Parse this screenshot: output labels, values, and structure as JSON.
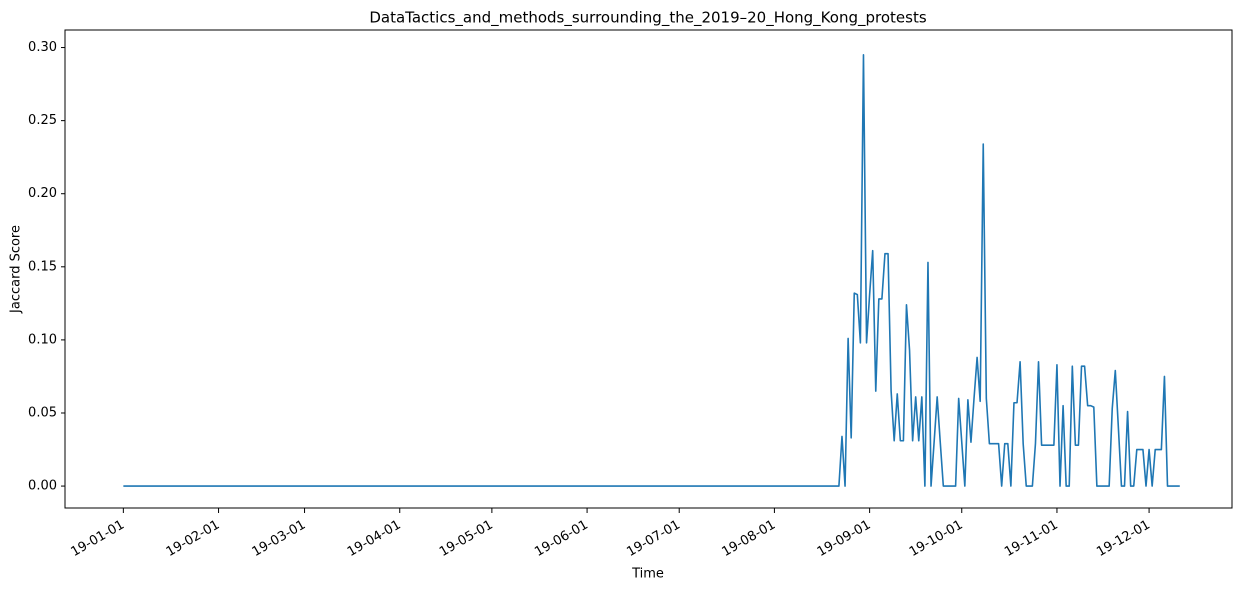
{
  "chart_data": {
    "type": "line",
    "title": "DataTactics_and_methods_surrounding_the_2019–20_Hong_Kong_protests",
    "x_label": "Time",
    "y_label": "Jaccard Score",
    "x": [
      "2019-01-01",
      "2019-08-22",
      "2019-08-23",
      "2019-08-24",
      "2019-08-25",
      "2019-08-26",
      "2019-08-27",
      "2019-08-28",
      "2019-08-29",
      "2019-08-30",
      "2019-08-31",
      "2019-09-01",
      "2019-09-02",
      "2019-09-03",
      "2019-09-04",
      "2019-09-05",
      "2019-09-06",
      "2019-09-07",
      "2019-09-08",
      "2019-09-09",
      "2019-09-10",
      "2019-09-11",
      "2019-09-12",
      "2019-09-13",
      "2019-09-14",
      "2019-09-15",
      "2019-09-16",
      "2019-09-17",
      "2019-09-18",
      "2019-09-19",
      "2019-09-20",
      "2019-09-21",
      "2019-09-22",
      "2019-09-23",
      "2019-09-24",
      "2019-09-25",
      "2019-09-26",
      "2019-09-27",
      "2019-09-28",
      "2019-09-29",
      "2019-09-30",
      "2019-10-01",
      "2019-10-02",
      "2019-10-03",
      "2019-10-04",
      "2019-10-05",
      "2019-10-06",
      "2019-10-07",
      "2019-10-08",
      "2019-10-09",
      "2019-10-10",
      "2019-10-11",
      "2019-10-12",
      "2019-10-13",
      "2019-10-14",
      "2019-10-15",
      "2019-10-16",
      "2019-10-17",
      "2019-10-18",
      "2019-10-19",
      "2019-10-20",
      "2019-10-21",
      "2019-10-22",
      "2019-10-23",
      "2019-10-24",
      "2019-10-25",
      "2019-10-26",
      "2019-10-27",
      "2019-10-28",
      "2019-10-29",
      "2019-10-30",
      "2019-10-31",
      "2019-11-01",
      "2019-11-02",
      "2019-11-03",
      "2019-11-04",
      "2019-11-05",
      "2019-11-06",
      "2019-11-07",
      "2019-11-08",
      "2019-11-09",
      "2019-11-10",
      "2019-11-11",
      "2019-11-12",
      "2019-11-13",
      "2019-11-14",
      "2019-11-15",
      "2019-11-16",
      "2019-11-17",
      "2019-11-18",
      "2019-11-19",
      "2019-11-20",
      "2019-11-21",
      "2019-11-22",
      "2019-11-23",
      "2019-11-24",
      "2019-11-25",
      "2019-11-26",
      "2019-11-27",
      "2019-11-28",
      "2019-11-29",
      "2019-11-30",
      "2019-12-01",
      "2019-12-02",
      "2019-12-03",
      "2019-12-04",
      "2019-12-05",
      "2019-12-06",
      "2019-12-07",
      "2019-12-08",
      "2019-12-09",
      "2019-12-10",
      "2019-12-11"
    ],
    "series": [
      {
        "name": "Jaccard Score",
        "color": "#1f77b4",
        "values": [
          0,
          0,
          0.034,
          0,
          0.101,
          0.033,
          0.132,
          0.131,
          0.098,
          0.295,
          0.098,
          0.131,
          0.161,
          0.065,
          0.128,
          0.128,
          0.159,
          0.159,
          0.065,
          0.031,
          0.063,
          0.031,
          0.031,
          0.124,
          0.093,
          0.031,
          0.061,
          0.031,
          0.061,
          0,
          0.153,
          0,
          0.03,
          0.061,
          0.03,
          0,
          0,
          0,
          0,
          0,
          0.06,
          0.03,
          0,
          0.059,
          0.03,
          0.06,
          0.088,
          0.058,
          0.234,
          0.06,
          0.029,
          0.029,
          0.029,
          0.029,
          0,
          0.029,
          0.029,
          0,
          0.057,
          0.057,
          0.085,
          0.029,
          0,
          0,
          0,
          0.029,
          0.085,
          0.028,
          0.028,
          0.028,
          0.028,
          0.028,
          0.083,
          0,
          0.055,
          0,
          0,
          0.082,
          0.028,
          0.028,
          0.082,
          0.082,
          0.055,
          0.055,
          0.054,
          0,
          0,
          0,
          0,
          0,
          0.053,
          0.079,
          0.04,
          0,
          0,
          0.051,
          0,
          0,
          0.025,
          0.025,
          0.025,
          0,
          0.025,
          0,
          0.025,
          0.025,
          0.025,
          0.075,
          0,
          0,
          0,
          0,
          0
        ]
      }
    ],
    "xlim": [
      "2018-12-13",
      "2019-12-28"
    ],
    "xticks": [
      {
        "value": "2019-01-01",
        "label": "19-01-01"
      },
      {
        "value": "2019-02-01",
        "label": "19-02-01"
      },
      {
        "value": "2019-03-01",
        "label": "19-03-01"
      },
      {
        "value": "2019-04-01",
        "label": "19-04-01"
      },
      {
        "value": "2019-05-01",
        "label": "19-05-01"
      },
      {
        "value": "2019-06-01",
        "label": "19-06-01"
      },
      {
        "value": "2019-07-01",
        "label": "19-07-01"
      },
      {
        "value": "2019-08-01",
        "label": "19-08-01"
      },
      {
        "value": "2019-09-01",
        "label": "19-09-01"
      },
      {
        "value": "2019-10-01",
        "label": "19-10-01"
      },
      {
        "value": "2019-11-01",
        "label": "19-11-01"
      },
      {
        "value": "2019-12-01",
        "label": "19-12-01"
      }
    ],
    "ylim": [
      -0.015,
      0.312
    ],
    "yticks": [
      {
        "value": 0,
        "label": "0.00"
      },
      0.05,
      {
        "value": 0.1,
        "label": "0.10"
      },
      0.15,
      {
        "value": 0.2,
        "label": "0.20"
      },
      0.25,
      {
        "value": 0.3,
        "label": "0.30"
      }
    ],
    "grid": false
  }
}
